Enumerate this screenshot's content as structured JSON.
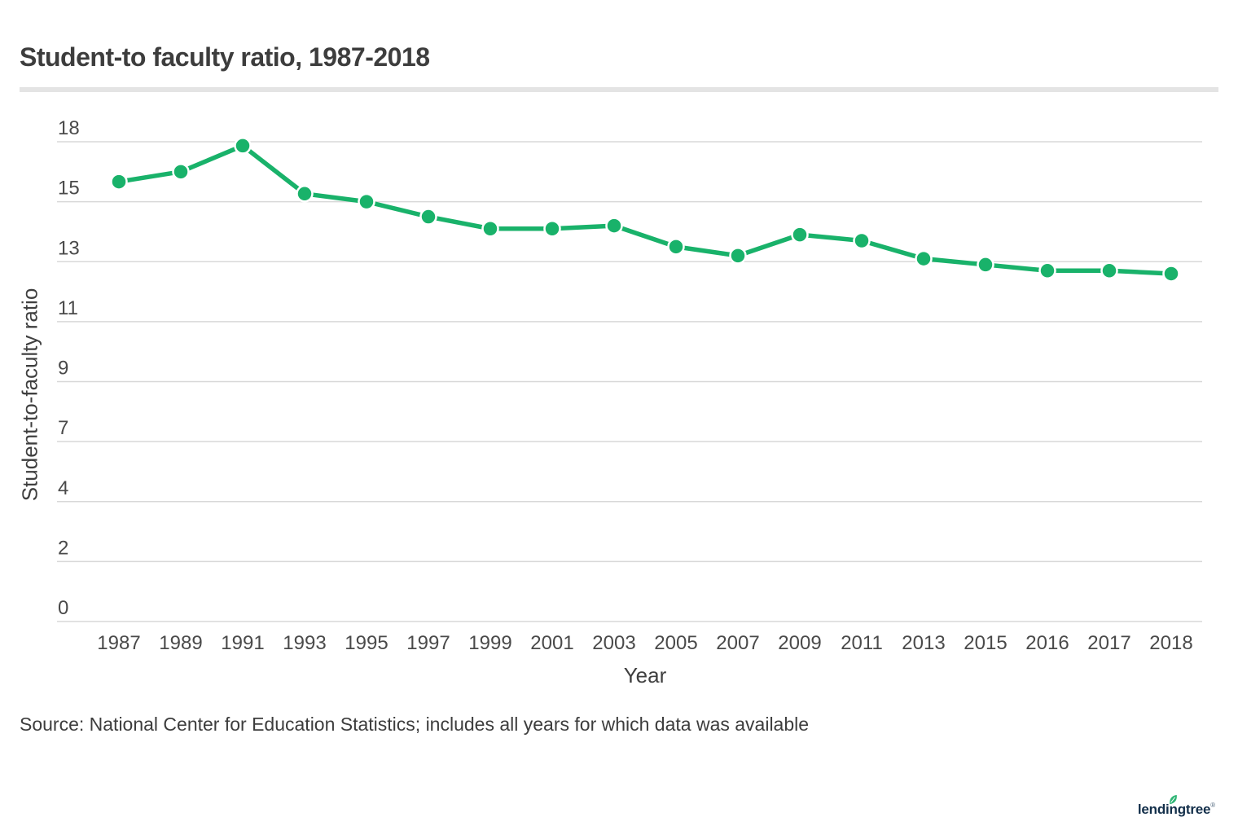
{
  "header": {
    "title": "Student-to faculty ratio, 1987-2018"
  },
  "footer": {
    "source": "Source: National Center for Education Statistics; includes all years for which data was available",
    "logo_text": "lendingtree",
    "logo_reg": "®"
  },
  "colors": {
    "accent_green": "#19b26a",
    "grid_gray": "#d8d8d8",
    "title_text": "#3d3d3d",
    "tick_text": "#4a4a4a",
    "divider_gray": "#e4e4e4",
    "logo_navy": "#132f4a",
    "leaf_green": "#2fb575"
  },
  "chart_data": {
    "type": "line",
    "title": "Student-to faculty ratio, 1987-2018",
    "xlabel": "Year",
    "ylabel": "Student-to-faculty ratio",
    "categories": [
      "1987",
      "1989",
      "1991",
      "1993",
      "1995",
      "1997",
      "1999",
      "2001",
      "2003",
      "2005",
      "2007",
      "2009",
      "2011",
      "2013",
      "2015",
      "2016",
      "2017",
      "2018"
    ],
    "values": [
      16.0,
      16.5,
      17.8,
      15.4,
      15.0,
      14.5,
      14.1,
      14.1,
      14.2,
      13.5,
      13.2,
      13.9,
      13.7,
      13.1,
      12.9,
      12.7,
      12.7,
      12.6
    ],
    "ytick_labels": [
      18,
      15,
      13,
      11,
      9,
      7,
      4,
      2,
      0
    ],
    "ylim": [
      0,
      18
    ],
    "grid": "horizontal",
    "legend": "none",
    "marker": "circle-white-ring"
  }
}
